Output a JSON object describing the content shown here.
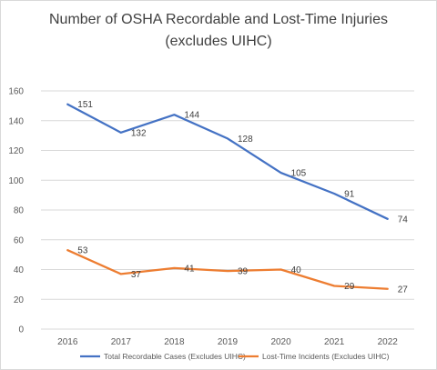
{
  "chart_data": {
    "type": "line",
    "title_line1": "Number of OSHA Recordable and Lost-Time Injuries",
    "title_line2": "(excludes UIHC)",
    "categories": [
      "2016",
      "2017",
      "2018",
      "2019",
      "2020",
      "2021",
      "2022"
    ],
    "ylim": [
      0,
      160
    ],
    "yticks": [
      "0",
      "20",
      "40",
      "60",
      "80",
      "100",
      "120",
      "140",
      "160"
    ],
    "grid": true,
    "legend_position": "bottom",
    "series": [
      {
        "name": "Total Recordable Cases (Excludes UIHC)",
        "color": "#4472C4",
        "values": [
          151,
          132,
          144,
          128,
          105,
          91,
          74
        ]
      },
      {
        "name": "Lost-Time Incidents (Excludes UIHC)",
        "color": "#ED7D31",
        "values": [
          53,
          37,
          41,
          39,
          40,
          29,
          27
        ]
      }
    ]
  }
}
